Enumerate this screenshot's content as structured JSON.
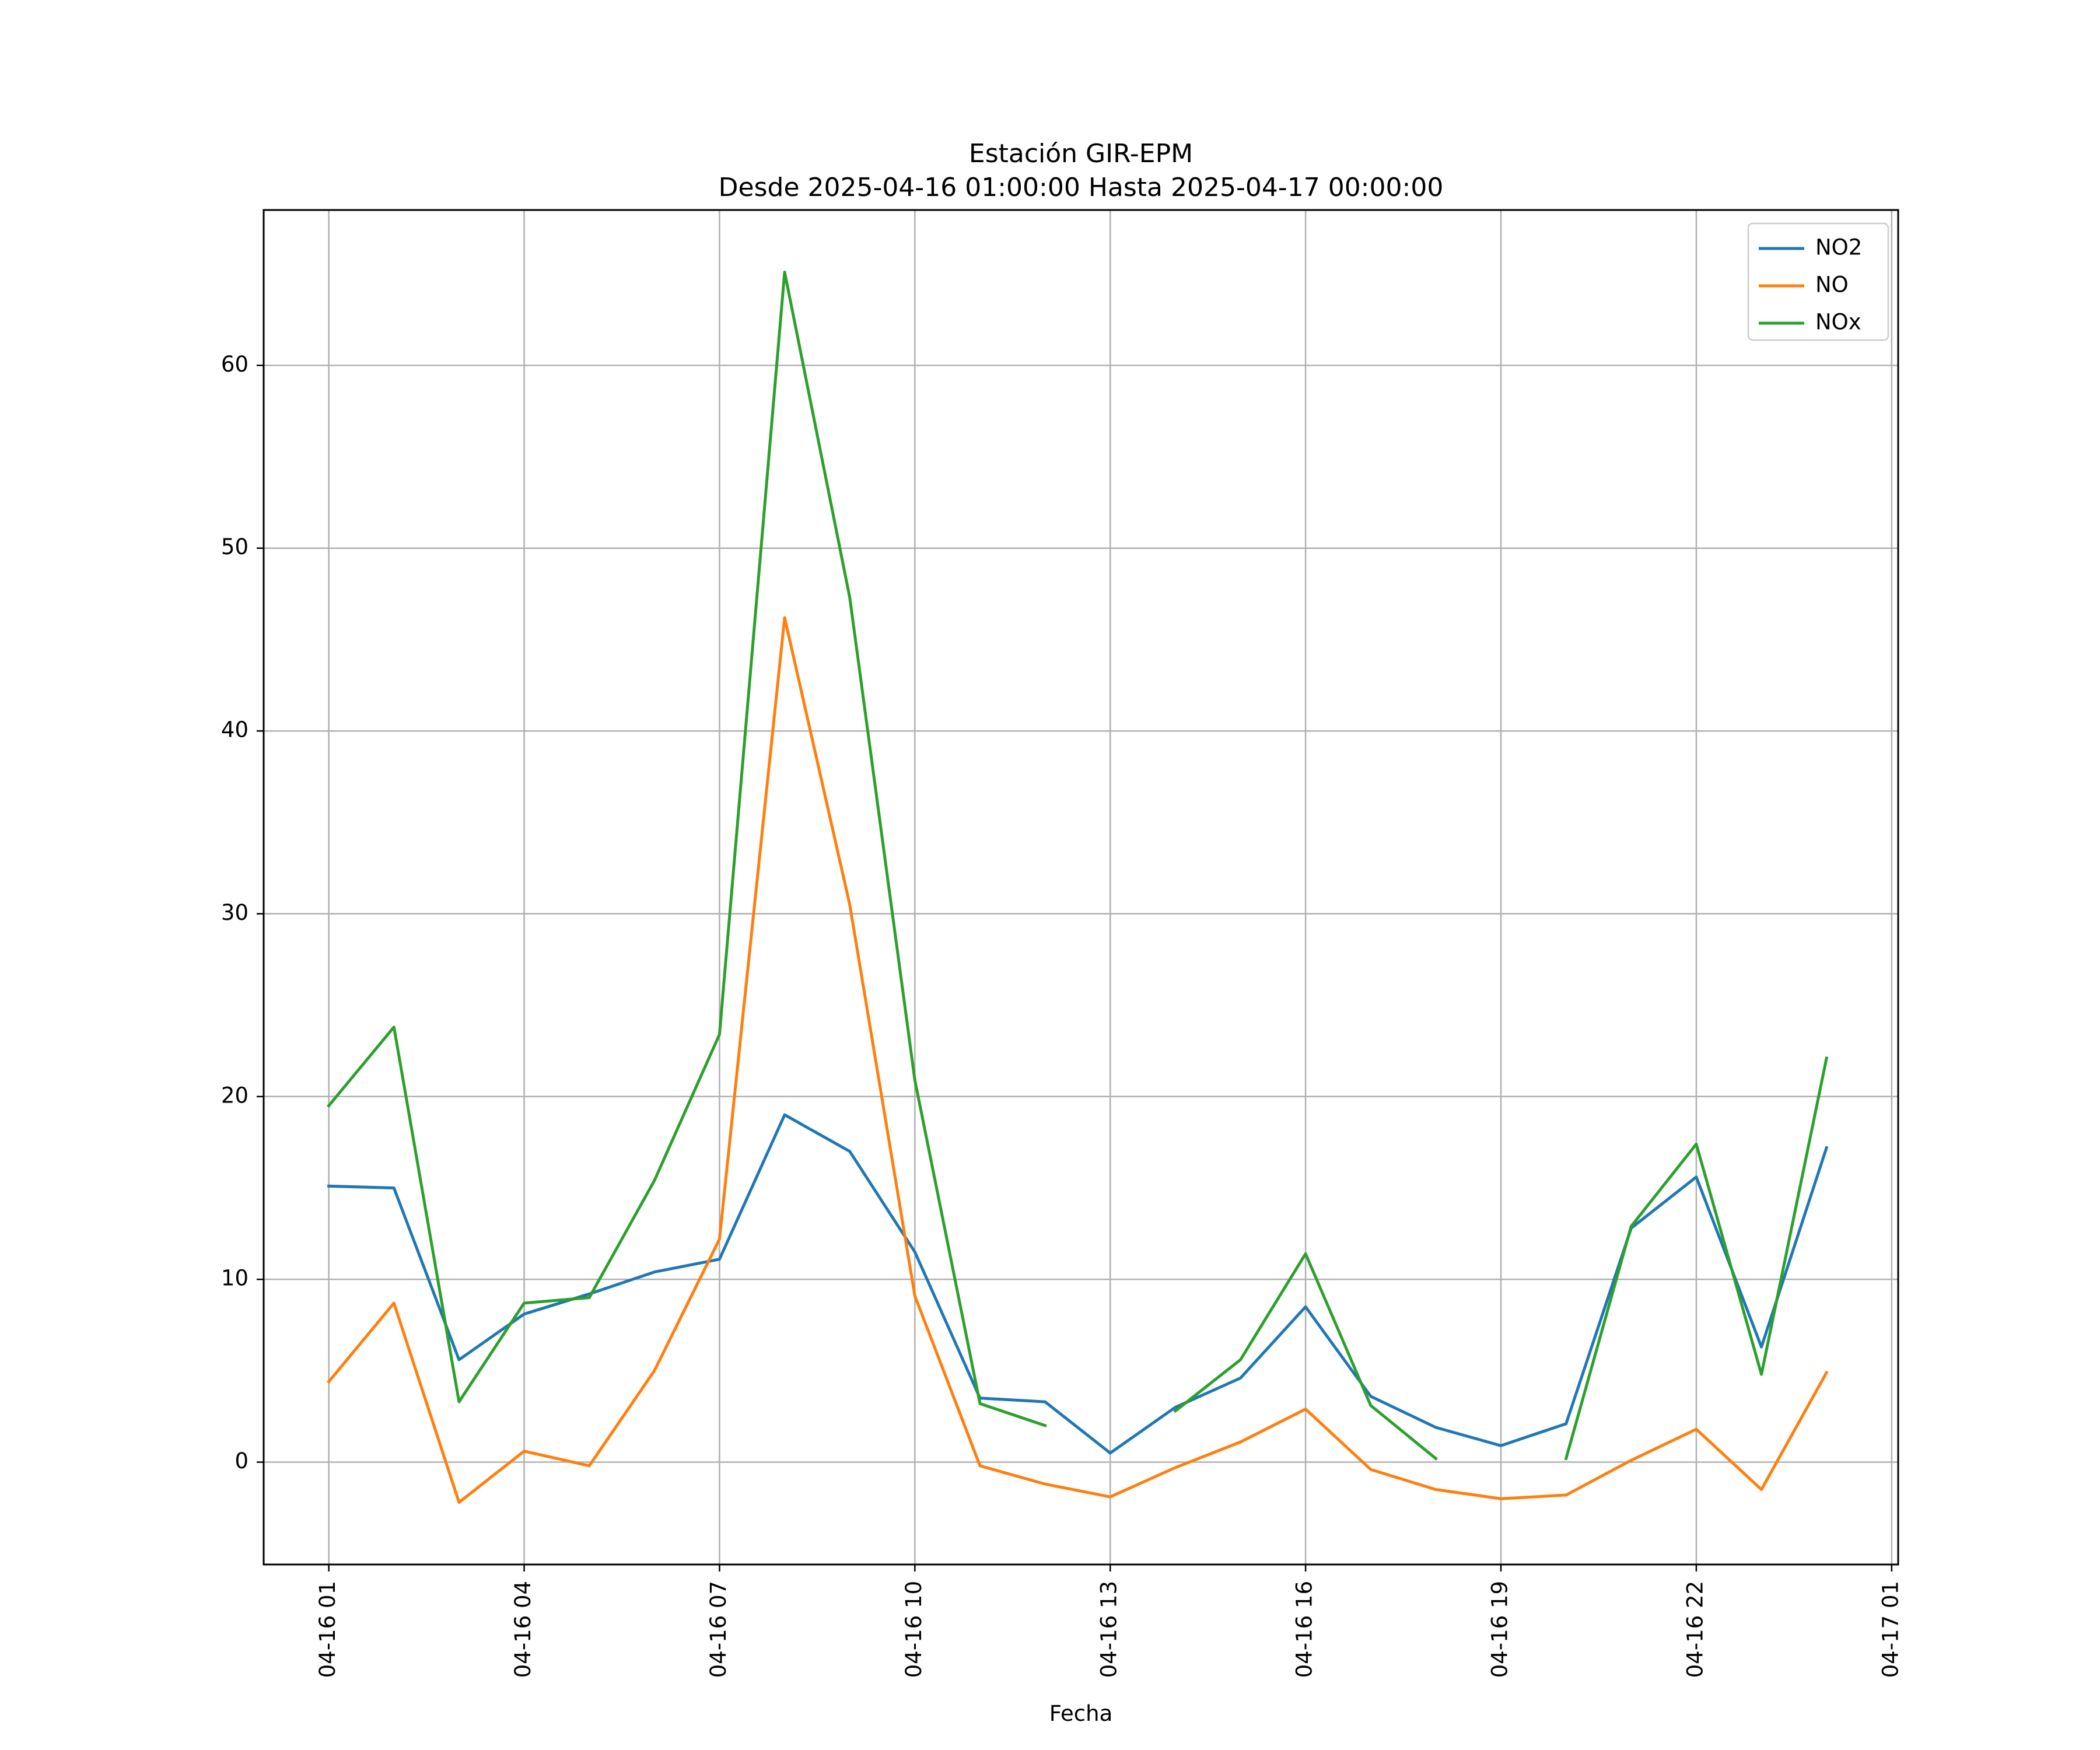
{
  "chart_data": {
    "type": "line",
    "title": "Estación GIR-EPM",
    "subtitle": "Desde 2025-04-16 01:00:00 Hasta 2025-04-17 00:00:00",
    "xlabel": "Fecha",
    "ylabel": "",
    "x": [
      "2025-04-16 01:00",
      "2025-04-16 02:00",
      "2025-04-16 03:00",
      "2025-04-16 04:00",
      "2025-04-16 05:00",
      "2025-04-16 06:00",
      "2025-04-16 07:00",
      "2025-04-16 08:00",
      "2025-04-16 09:00",
      "2025-04-16 10:00",
      "2025-04-16 11:00",
      "2025-04-16 12:00",
      "2025-04-16 13:00",
      "2025-04-16 14:00",
      "2025-04-16 15:00",
      "2025-04-16 16:00",
      "2025-04-16 17:00",
      "2025-04-16 18:00",
      "2025-04-16 19:00",
      "2025-04-16 20:00",
      "2025-04-16 21:00",
      "2025-04-16 22:00",
      "2025-04-16 23:00",
      "2025-04-17 00:00"
    ],
    "xlim": [
      "2025-04-16 00:00",
      "2025-04-17 01:06"
    ],
    "xticks": [
      {
        "value": "2025-04-16 01:00",
        "label": "04-16 01"
      },
      {
        "value": "2025-04-16 04:00",
        "label": "04-16 04"
      },
      {
        "value": "2025-04-16 07:00",
        "label": "04-16 07"
      },
      {
        "value": "2025-04-16 10:00",
        "label": "04-16 10"
      },
      {
        "value": "2025-04-16 13:00",
        "label": "04-16 13"
      },
      {
        "value": "2025-04-16 16:00",
        "label": "04-16 16"
      },
      {
        "value": "2025-04-16 19:00",
        "label": "04-16 19"
      },
      {
        "value": "2025-04-16 22:00",
        "label": "04-16 22"
      },
      {
        "value": "2025-04-17 01:00",
        "label": "04-17 01"
      }
    ],
    "ylim": [
      -5.6,
      68.5
    ],
    "yticks": [
      0,
      10,
      20,
      30,
      40,
      50,
      60
    ],
    "grid": true,
    "legend": "top-right",
    "series": [
      {
        "name": "NO2",
        "color": "#1f77b4",
        "values": [
          15.1,
          15.0,
          5.6,
          8.1,
          9.2,
          10.4,
          11.1,
          19.0,
          17.0,
          11.5,
          3.5,
          3.3,
          0.5,
          3.0,
          4.6,
          8.5,
          3.6,
          1.9,
          0.9,
          2.1,
          12.8,
          15.6,
          6.3,
          17.2
        ]
      },
      {
        "name": "NO",
        "color": "#ff7f0e",
        "values": [
          4.4,
          8.7,
          -2.2,
          0.6,
          -0.2,
          5.0,
          12.2,
          46.2,
          30.5,
          9.1,
          -0.2,
          -1.2,
          -1.9,
          -0.3,
          1.1,
          2.9,
          -0.4,
          -1.5,
          -2.0,
          -1.8,
          0.1,
          1.8,
          -1.5,
          4.9
        ]
      },
      {
        "name": "NOx",
        "color": "#2ca02c",
        "values": [
          19.5,
          23.8,
          3.3,
          8.7,
          9.0,
          15.4,
          23.4,
          65.1,
          47.3,
          20.9,
          3.2,
          2.0,
          null,
          2.8,
          5.6,
          11.4,
          3.1,
          0.2,
          null,
          0.2,
          12.9,
          17.4,
          4.8,
          22.1
        ]
      }
    ]
  }
}
